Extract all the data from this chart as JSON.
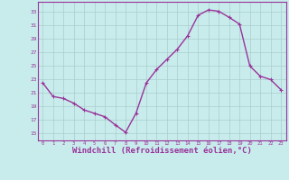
{
  "x": [
    0,
    1,
    2,
    3,
    4,
    5,
    6,
    7,
    8,
    9,
    10,
    11,
    12,
    13,
    14,
    15,
    16,
    17,
    18,
    19,
    20,
    21,
    22,
    23
  ],
  "y": [
    22.5,
    20.5,
    20.2,
    19.5,
    18.5,
    18.0,
    17.5,
    16.3,
    15.2,
    18.0,
    22.5,
    24.5,
    26.0,
    27.5,
    29.5,
    32.5,
    33.3,
    33.1,
    32.2,
    31.2,
    25.0,
    23.5,
    23.0,
    21.5
  ],
  "line_color": "#993399",
  "marker": "+",
  "marker_size": 3,
  "linewidth": 1.0,
  "xlabel": "Windchill (Refroidissement éolien,°C)",
  "xlabel_fontsize": 6.5,
  "xtick_labels": [
    "0",
    "1",
    "2",
    "3",
    "4",
    "5",
    "6",
    "7",
    "8",
    "9",
    "10",
    "11",
    "12",
    "13",
    "14",
    "15",
    "16",
    "17",
    "18",
    "19",
    "20",
    "21",
    "22",
    "23"
  ],
  "ytick_values": [
    15,
    17,
    19,
    21,
    23,
    25,
    27,
    29,
    31,
    33
  ],
  "ytick_labels": [
    "15",
    "17",
    "19",
    "21",
    "23",
    "25",
    "27",
    "29",
    "31",
    "33"
  ],
  "ylim": [
    14.0,
    34.5
  ],
  "xlim": [
    -0.5,
    23.5
  ],
  "bg_color": "#c8ecec",
  "grid_color": "#aacccc",
  "tick_color": "#993399",
  "label_color": "#993399",
  "spine_color": "#993399"
}
